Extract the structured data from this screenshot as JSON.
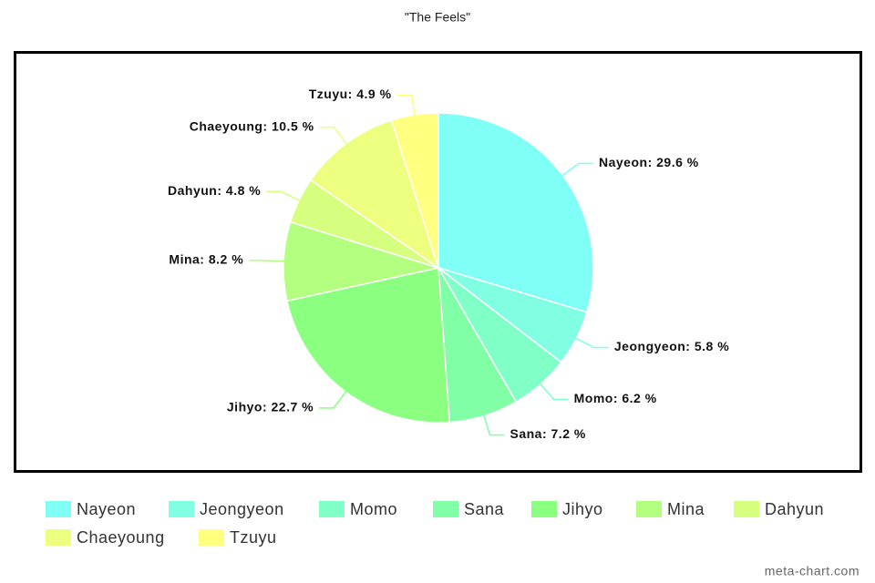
{
  "chart_data": {
    "type": "pie",
    "title": "\"The Feels\"",
    "categories": [
      "Nayeon",
      "Jeongyeon",
      "Momo",
      "Sana",
      "Jihyo",
      "Mina",
      "Dahyun",
      "Chaeyoung",
      "Tzuyu"
    ],
    "values": [
      29.6,
      5.8,
      6.2,
      7.2,
      22.7,
      8.2,
      4.8,
      10.5,
      4.9
    ],
    "value_labels": [
      "Nayeon: 29.6 %",
      "Jeongyeon: 5.8 %",
      "Momo: 6.2 %",
      "Sana: 7.2 %",
      "Jihyo: 22.7 %",
      "Mina: 8.2 %",
      "Dahyun: 4.8 %",
      "Chaeyoung: 10.5 %",
      "Tzuyu: 4.9 %"
    ],
    "colors": [
      "#80fff6",
      "#80ffe2",
      "#80ffc6",
      "#80ffa6",
      "#8aff80",
      "#b3ff80",
      "#d6ff80",
      "#eeff80",
      "#ffff80"
    ],
    "legend": "bottom",
    "watermark": "meta-chart.com"
  }
}
